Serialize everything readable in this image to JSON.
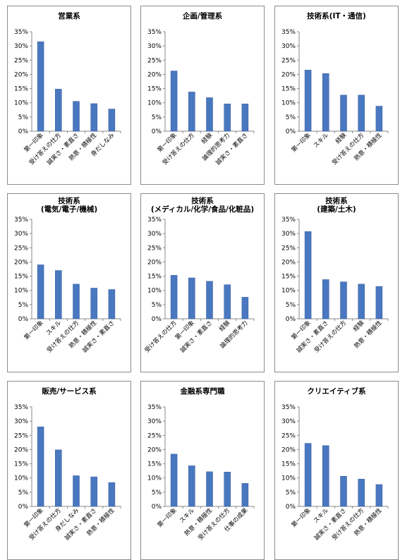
{
  "colors": {
    "bar": "#4a78c0",
    "bar_edge": "#2f5a9e",
    "axis": "#888888",
    "grid": "#d0d0d0"
  },
  "chart_data": [
    {
      "type": "bar",
      "title": "営業系",
      "subtitle": "",
      "categories": [
        "第一印象",
        "受け答えの仕方",
        "誠実さ・素直さ",
        "熱意・積極性",
        "身だしなみ"
      ],
      "values": [
        31.5,
        14.8,
        10.5,
        9.7,
        7.8
      ],
      "ylim": [
        0,
        35
      ],
      "yticks": [
        "0%",
        "5%",
        "10%",
        "15%",
        "20%",
        "25%",
        "30%",
        "35%"
      ],
      "grid": false
    },
    {
      "type": "bar",
      "title": "企画/管理系",
      "subtitle": "",
      "categories": [
        "第一印象",
        "受け答えの仕方",
        "経験",
        "論理的思考力",
        "誠実さ・素直さ"
      ],
      "values": [
        21.2,
        13.8,
        11.8,
        9.6,
        9.6
      ],
      "ylim": [
        0,
        35
      ],
      "yticks": [
        "0%",
        "5%",
        "10%",
        "15%",
        "20%",
        "25%",
        "30%",
        "35%"
      ],
      "grid": false
    },
    {
      "type": "bar",
      "title": "技術系(IT・通信)",
      "subtitle": "",
      "categories": [
        "第一印象",
        "スキル",
        "経験",
        "受け答えの仕方",
        "熱意・積極性"
      ],
      "values": [
        21.5,
        20.3,
        12.7,
        12.7,
        8.8
      ],
      "ylim": [
        0,
        35
      ],
      "yticks": [
        "0%",
        "5%",
        "10%",
        "15%",
        "20%",
        "25%",
        "30%",
        "35%"
      ],
      "grid": false
    },
    {
      "type": "bar",
      "title": "技術系",
      "subtitle": "(電気/電子/機械)",
      "categories": [
        "第一印象",
        "スキル",
        "受け答えの仕方",
        "熱意・積極性",
        "誠実さ・素直さ"
      ],
      "values": [
        19.0,
        17.0,
        12.2,
        10.8,
        10.3
      ],
      "ylim": [
        0,
        35
      ],
      "yticks": [
        "0%",
        "5%",
        "10%",
        "15%",
        "20%",
        "25%",
        "30%",
        "35%"
      ],
      "grid": false
    },
    {
      "type": "bar",
      "title": "技術系",
      "subtitle": "(メディカル/化学/食品/化粧品)",
      "categories": [
        "受け答えの仕方",
        "第一印象",
        "誠実さ・素直さ",
        "経験",
        "論理的思考力"
      ],
      "values": [
        15.3,
        14.4,
        13.2,
        12.0,
        7.6
      ],
      "ylim": [
        0,
        35
      ],
      "yticks": [
        "0%",
        "5%",
        "10%",
        "15%",
        "20%",
        "25%",
        "30%",
        "35%"
      ],
      "grid": false
    },
    {
      "type": "bar",
      "title": "技術系",
      "subtitle": "(建築/土木)",
      "categories": [
        "第一印象",
        "誠実さ・素直さ",
        "受け答えの仕方",
        "経験",
        "熱意・積極性"
      ],
      "values": [
        30.7,
        13.8,
        13.0,
        12.2,
        11.4
      ],
      "ylim": [
        0,
        35
      ],
      "yticks": [
        "0%",
        "5%",
        "10%",
        "15%",
        "20%",
        "25%",
        "30%",
        "35%"
      ],
      "grid": false
    },
    {
      "type": "bar",
      "title": "販売/サービス系",
      "subtitle": "",
      "categories": [
        "第一印象",
        "受け答えの仕方",
        "身だしなみ",
        "誠実さ・素直さ",
        "熱意・積極性"
      ],
      "values": [
        28.0,
        19.9,
        10.8,
        10.4,
        8.4
      ],
      "ylim": [
        0,
        35
      ],
      "yticks": [
        "0%",
        "5%",
        "10%",
        "15%",
        "20%",
        "25%",
        "30%",
        "35%"
      ],
      "grid": false
    },
    {
      "type": "bar",
      "title": "金融系専門職",
      "subtitle": "",
      "categories": [
        "第一印象",
        "スキル",
        "熱意・積極性",
        "受け答えの仕方",
        "仕事の成果"
      ],
      "values": [
        18.4,
        14.3,
        12.2,
        12.1,
        8.1
      ],
      "ylim": [
        0,
        35
      ],
      "yticks": [
        "0%",
        "5%",
        "10%",
        "15%",
        "20%",
        "25%",
        "30%",
        "35%"
      ],
      "grid": false
    },
    {
      "type": "bar",
      "title": "クリエイティブ系",
      "subtitle": "",
      "categories": [
        "第一印象",
        "スキル",
        "誠実さ・素直さ",
        "受け答えの仕方",
        "熱意・積極性"
      ],
      "values": [
        22.2,
        21.4,
        10.6,
        9.6,
        7.7
      ],
      "ylim": [
        0,
        35
      ],
      "yticks": [
        "0%",
        "5%",
        "10%",
        "15%",
        "20%",
        "25%",
        "30%",
        "35%"
      ],
      "grid": false
    }
  ]
}
